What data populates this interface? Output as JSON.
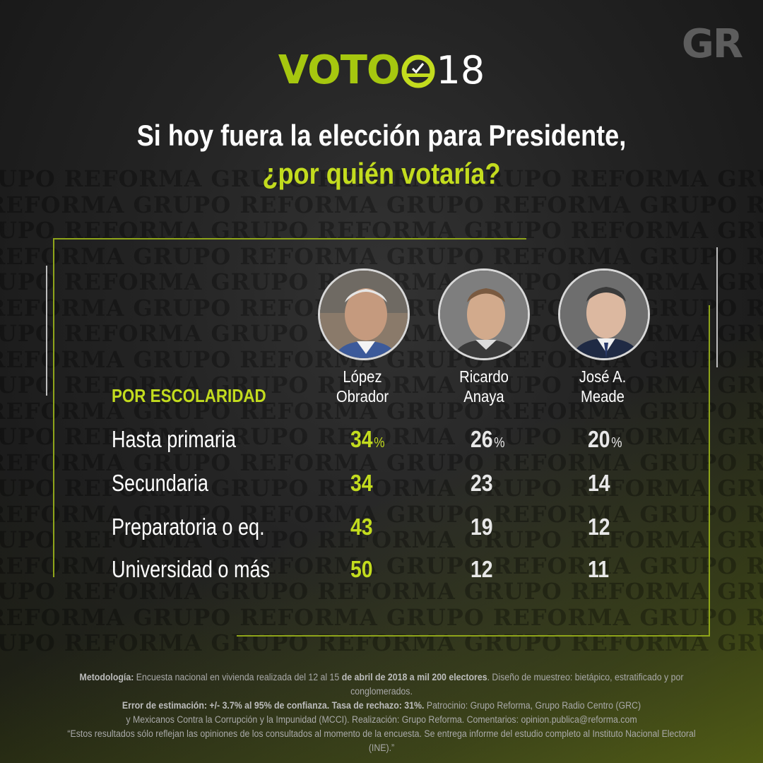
{
  "brand": {
    "gr_logo": "GR",
    "voto_logo": "VOTO",
    "voto_year": "18"
  },
  "headline": {
    "line1": "Si hoy fuera la elección para Presidente,",
    "line2": "¿por quién votaría?"
  },
  "watermark_text": "GRUPO REFORMA",
  "colors": {
    "accent": "#c3dc1e",
    "background": "#1c1c1c",
    "text": "#ffffff",
    "muted": "#a9a9a9"
  },
  "chart_data": {
    "type": "table",
    "section_label": "POR ESCOLARIDAD",
    "unit": "%",
    "columns": [
      {
        "name_line1": "López",
        "name_line2": "Obrador",
        "photo": "candidate-portrait"
      },
      {
        "name_line1": "Ricardo",
        "name_line2": "Anaya",
        "photo": "candidate-portrait"
      },
      {
        "name_line1": "José A.",
        "name_line2": "Meade",
        "photo": "candidate-portrait"
      }
    ],
    "rows": [
      {
        "label": "Hasta primaria",
        "values": [
          34,
          26,
          20
        ]
      },
      {
        "label": "Secundaria",
        "values": [
          34,
          23,
          14
        ]
      },
      {
        "label": "Preparatoria o eq.",
        "values": [
          43,
          19,
          12
        ]
      },
      {
        "label": "Universidad o más",
        "values": [
          50,
          12,
          11
        ]
      }
    ]
  },
  "footer": {
    "line1_bold": "Metodología:",
    "line1_a": " Encuesta nacional en vivienda realizada del 12 al 15 ",
    "line1_bold2": "de abril de 2018 a mil 200 electores",
    "line1_b": ". Diseño de muestreo: bietápico, estratificado y por conglomerados.",
    "line2_bold": "Error de estimación: +/- 3.7% al 95% de confianza. Tasa de rechazo: 31%.",
    "line2_a": " Patrocinio: Grupo Reforma, Grupo Radio Centro (GRC)",
    "line3": "y Mexicanos Contra la Corrupción y la Impunidad (MCCI). Realización: Grupo Reforma. Comentarios: opinion.publica@reforma.com",
    "line4": "“Estos resultados sólo reflejan las opiniones de los consultados al momento de la encuesta. Se entrega informe  del estudio completo al Instituto Nacional Electoral (INE).”"
  }
}
